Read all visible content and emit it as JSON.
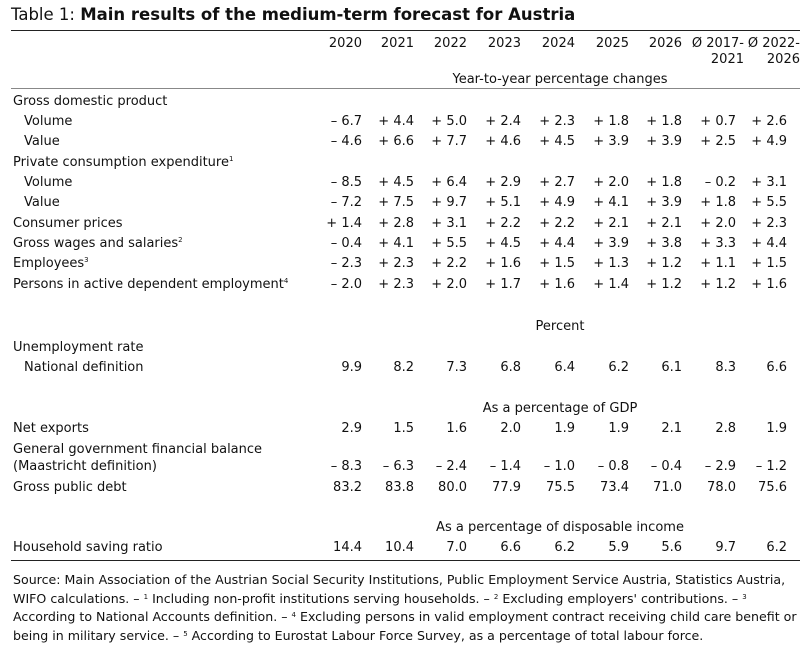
{
  "title": {
    "prefix": "Table 1: ",
    "main": "Main results of the medium-term forecast for Austria"
  },
  "columns": [
    "2020",
    "2021",
    "2022",
    "2023",
    "2024",
    "2025",
    "2026",
    "Ø 2017-",
    "Ø 2022-"
  ],
  "columns_line2": [
    "",
    "",
    "",
    "",
    "",
    "",
    "",
    "2021",
    "2026"
  ],
  "sections": [
    {
      "unit": "Year-to-year percentage changes",
      "rows": [
        {
          "label": "Gross domestic product",
          "sup": "",
          "indent": false,
          "values": []
        },
        {
          "label": "Volume",
          "sup": "",
          "indent": true,
          "values": [
            "– 6.7",
            "+ 4.4",
            "+ 5.0",
            "+ 2.4",
            "+ 2.3",
            "+ 1.8",
            "+ 1.8",
            "+ 0.7",
            "+ 2.6"
          ]
        },
        {
          "label": "Value",
          "sup": "",
          "indent": true,
          "values": [
            "– 4.6",
            "+ 6.6",
            "+ 7.7",
            "+ 4.6",
            "+ 4.5",
            "+ 3.9",
            "+ 3.9",
            "+ 2.5",
            "+ 4.9"
          ]
        },
        {
          "label": "Private consumption expenditure",
          "sup": "1",
          "indent": false,
          "values": []
        },
        {
          "label": "Volume",
          "sup": "",
          "indent": true,
          "values": [
            "– 8.5",
            "+ 4.5",
            "+ 6.4",
            "+ 2.9",
            "+ 2.7",
            "+ 2.0",
            "+ 1.8",
            "– 0.2",
            "+ 3.1"
          ]
        },
        {
          "label": "Value",
          "sup": "",
          "indent": true,
          "values": [
            "– 7.2",
            "+ 7.5",
            "+ 9.7",
            "+ 5.1",
            "+ 4.9",
            "+ 4.1",
            "+ 3.9",
            "+ 1.8",
            "+ 5.5"
          ]
        },
        {
          "label": "Consumer prices",
          "sup": "",
          "indent": false,
          "values": [
            "+ 1.4",
            "+ 2.8",
            "+ 3.1",
            "+ 2.2",
            "+ 2.2",
            "+ 2.1",
            "+ 2.1",
            "+ 2.0",
            "+ 2.3"
          ]
        },
        {
          "label": "Gross wages and salaries",
          "sup": "2",
          "indent": false,
          "values": [
            "– 0.4",
            "+ 4.1",
            "+ 5.5",
            "+ 4.5",
            "+ 4.4",
            "+ 3.9",
            "+ 3.8",
            "+ 3.3",
            "+ 4.4"
          ]
        },
        {
          "label": "Employees",
          "sup": "3",
          "indent": false,
          "values": [
            "– 2.3",
            "+ 2.3",
            "+ 2.2",
            "+ 1.6",
            "+ 1.5",
            "+ 1.3",
            "+ 1.2",
            "+ 1.1",
            "+ 1.5"
          ]
        },
        {
          "label": "Persons in active dependent employment",
          "sup": "4",
          "indent": false,
          "values": [
            "– 2.0",
            "+ 2.3",
            "+ 2.0",
            "+ 1.7",
            "+ 1.6",
            "+ 1.4",
            "+ 1.2",
            "+ 1.2",
            "+ 1.6"
          ]
        }
      ]
    },
    {
      "unit": "Percent",
      "rows": [
        {
          "label": "Unemployment rate",
          "sup": "",
          "indent": false,
          "values": []
        },
        {
          "label": "National definition",
          "sup": "",
          "indent": true,
          "values": [
            "9.9",
            "8.2",
            "7.3",
            "6.8",
            "6.4",
            "6.2",
            "6.1",
            "8.3",
            "6.6"
          ]
        }
      ]
    },
    {
      "unit": "As a percentage of GDP",
      "rows": [
        {
          "label": "Net exports",
          "sup": "",
          "indent": false,
          "values": [
            "2.9",
            "1.5",
            "1.6",
            "2.0",
            "1.9",
            "1.9",
            "2.1",
            "2.8",
            "1.9"
          ]
        },
        {
          "label": "General government financial balance",
          "sup": "",
          "indent": false,
          "values": []
        },
        {
          "label": "(Maastricht definition)",
          "sup": "",
          "indent": false,
          "values": [
            "– 8.3",
            "– 6.3",
            "– 2.4",
            "– 1.4",
            "– 1.0",
            "– 0.8",
            "– 0.4",
            "– 2.9",
            "– 1.2"
          ]
        },
        {
          "label": "Gross public debt",
          "sup": "",
          "indent": false,
          "values": [
            "83.2",
            "83.8",
            "80.0",
            "77.9",
            "75.5",
            "73.4",
            "71.0",
            "78.0",
            "75.6"
          ]
        }
      ]
    },
    {
      "unit": "As a percentage of disposable income",
      "rows": [
        {
          "label": "Household saving ratio",
          "sup": "",
          "indent": false,
          "values": [
            "14.4",
            "10.4",
            "7.0",
            "6.6",
            "6.2",
            "5.9",
            "5.6",
            "9.7",
            "6.2"
          ]
        }
      ]
    }
  ],
  "source": {
    "t0": "Source: Main Association of the Austrian Social Security Institutions, Public Employment Service Austria, Statistics Austria, WIFO calculations. – ",
    "s1": "1",
    "t1": " Including non-profit institutions serving households. – ",
    "s2": "2",
    "t2": " Excluding employers' contributions. – ",
    "s3": "3",
    "t3": " According to National Accounts definition. – ",
    "s4": "4",
    "t4": " Excluding persons in valid employment contract receiving child care benefit or being in military service. – ",
    "s5": "5",
    "t5": " According to Eurostat Labour Force Survey, as a percentage of total labour force."
  }
}
